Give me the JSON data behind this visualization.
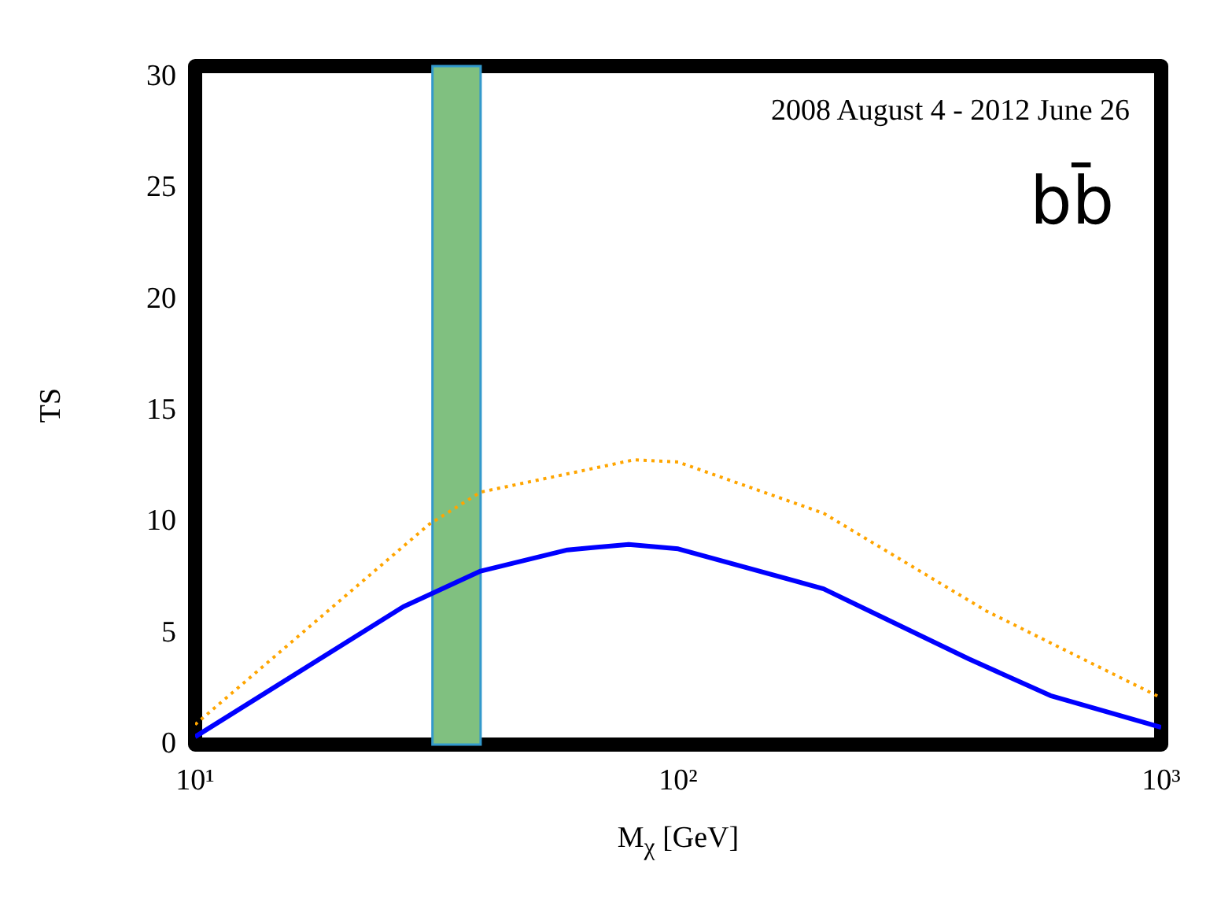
{
  "chart_data": {
    "type": "line",
    "xlabel": "M$_{χ}$ [GeV]",
    "ylabel": "TS",
    "annotations": [
      "2008 August 4 - 2012 June 26",
      "bb̄"
    ],
    "log": "x",
    "xlim": [
      10,
      1000
    ],
    "xticks": [
      {
        "value": 10,
        "label": "10¹"
      },
      {
        "value": 100,
        "label": "10²"
      },
      {
        "value": 1000,
        "label": "10³"
      }
    ],
    "ylim": [
      0,
      30.5
    ],
    "yticks": [
      0,
      5,
      10,
      15,
      20,
      25,
      30
    ],
    "grid": false,
    "legend": false,
    "bands": [
      {
        "axis": "x",
        "from": 31,
        "to": 39,
        "color": "#80c080"
      }
    ],
    "series": [
      {
        "color": "#0000ff",
        "line_style": "solid",
        "x": [
          10,
          27,
          39,
          59,
          79,
          100,
          200,
          400,
          590,
          1000
        ],
        "values": [
          0.35,
          6.2,
          7.8,
          8.75,
          9.0,
          8.8,
          7.0,
          3.85,
          2.2,
          0.77
        ]
      },
      {
        "color": "#ffa500",
        "line_style": "dotted",
        "x": [
          10,
          30.5,
          39,
          81,
          100,
          200,
          435,
          1000
        ],
        "values": [
          0.9,
          9.9,
          11.35,
          12.8,
          12.7,
          10.4,
          6.0,
          2.1
        ]
      }
    ]
  }
}
